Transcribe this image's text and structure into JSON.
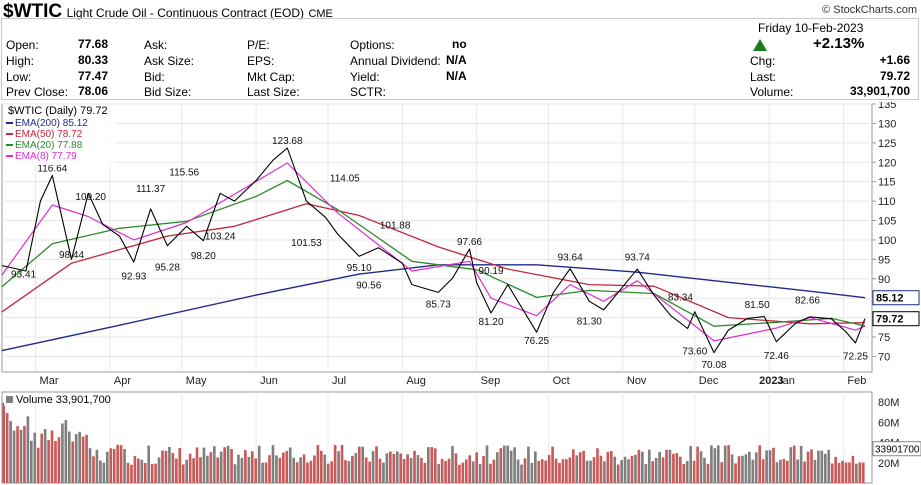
{
  "header": {
    "symbol": "$WTIC",
    "name": "Light Crude Oil - Continuous Contract (EOD)",
    "exchange": "CME",
    "logo": "© StockCharts.com",
    "date": "Friday  10-Feb-2023",
    "pct_change": "+2.13%",
    "icons": {
      "change": "up-triangle-icon"
    },
    "colors": {
      "up": "#1b7a1b"
    }
  },
  "stats": {
    "open_label": "Open:",
    "open": "77.68",
    "high_label": "High:",
    "high": "80.33",
    "low_label": "Low:",
    "low": "77.47",
    "prev_label": "Prev Close:",
    "prev": "78.06",
    "ask_label": "Ask:",
    "ask_size_label": "Ask Size:",
    "bid_label": "Bid:",
    "bid_size_label": "Bid Size:",
    "pe_label": "P/E:",
    "eps_label": "EPS:",
    "mktcap_label": "Mkt Cap:",
    "lastsize_label": "Last Size:",
    "options_label": "Options:",
    "options": "no",
    "dividend_label": "Annual Dividend:",
    "dividend": "N/A",
    "yield_label": "Yield:",
    "yield": "N/A",
    "sctr_label": "SCTR:",
    "chg_label": "Chg:",
    "chg": "+1.66",
    "last_label": "Last:",
    "last": "79.72",
    "volume_label": "Volume:",
    "volume": "33,901,700"
  },
  "chart_data": {
    "type": "line",
    "price_label": "$WTIC (Daily) 79.72",
    "ema_labels": [
      "EMA(200) 85.12",
      "EMA(50) 78.72",
      "EMA(20) 77.88",
      "EMA(8) 77.79"
    ],
    "ema_colors": [
      "#1f2a8c",
      "#c0283a",
      "#2c8a2c",
      "#e02cd0"
    ],
    "price_color": "#000000",
    "ylim": [
      66,
      135
    ],
    "yticks": [
      70,
      75,
      80,
      85,
      90,
      95,
      100,
      105,
      110,
      115,
      120,
      125,
      130,
      135
    ],
    "months": [
      "Mar",
      "Apr",
      "May",
      "Jun",
      "Jul",
      "Aug",
      "Sep",
      "Oct",
      "Nov",
      "Dec",
      "2023",
      "Jan",
      "Feb"
    ],
    "x_range": [
      "2022-02-15",
      "2023-02-10"
    ],
    "month_ticks": [
      "2022-03-01",
      "2022-04-01",
      "2022-05-01",
      "2022-06-01",
      "2022-07-01",
      "2022-08-01",
      "2022-09-01",
      "2022-10-01",
      "2022-11-01",
      "2022-12-01",
      "2023-01-01",
      "2023-02-01"
    ],
    "price": {
      "x": [
        "2022-02-15",
        "2022-02-25",
        "2022-03-03",
        "2022-03-08",
        "2022-03-16",
        "2022-03-23",
        "2022-03-29",
        "2022-04-05",
        "2022-04-11",
        "2022-04-18",
        "2022-04-25",
        "2022-05-03",
        "2022-05-10",
        "2022-05-17",
        "2022-05-23",
        "2022-06-01",
        "2022-06-08",
        "2022-06-14",
        "2022-06-22",
        "2022-06-30",
        "2022-07-05",
        "2022-07-14",
        "2022-07-22",
        "2022-08-01",
        "2022-08-05",
        "2022-08-16",
        "2022-08-22",
        "2022-08-29",
        "2022-09-01",
        "2022-09-07",
        "2022-09-14",
        "2022-09-26",
        "2022-10-03",
        "2022-10-10",
        "2022-10-18",
        "2022-10-24",
        "2022-11-07",
        "2022-11-14",
        "2022-11-21",
        "2022-11-28",
        "2022-12-01",
        "2022-12-09",
        "2022-12-15",
        "2022-12-23",
        "2022-12-30",
        "2023-01-04",
        "2023-01-12",
        "2023-01-18",
        "2023-01-27",
        "2023-02-02",
        "2023-02-06",
        "2023-02-10"
      ],
      "values": [
        93.4,
        92.0,
        110.0,
        116.6,
        95.0,
        112.0,
        104.0,
        101.0,
        94.3,
        108.0,
        98.5,
        103.5,
        99.8,
        112.0,
        110.0,
        115.3,
        120.5,
        123.68,
        110.0,
        105.8,
        101.53,
        95.8,
        98.0,
        94.0,
        88.5,
        86.5,
        90.2,
        97.66,
        89.0,
        81.2,
        88.5,
        76.25,
        86.5,
        92.6,
        84.2,
        82.0,
        92.5,
        85.8,
        80.5,
        77.2,
        81.5,
        71.0,
        76.8,
        79.8,
        80.3,
        73.8,
        78.5,
        80.2,
        79.7,
        76.4,
        73.5,
        79.72
      ]
    },
    "ema200": {
      "x": [
        "2022-02-15",
        "2022-04-01",
        "2022-06-01",
        "2022-07-14",
        "2022-08-16",
        "2022-09-26",
        "2022-11-07",
        "2022-12-15",
        "2023-01-18",
        "2023-02-10"
      ],
      "values": [
        71.5,
        77.5,
        85.8,
        91.2,
        93.6,
        93.6,
        91.7,
        89.1,
        86.8,
        85.12
      ]
    },
    "ema50": {
      "x": [
        "2022-02-15",
        "2022-03-16",
        "2022-04-25",
        "2022-05-23",
        "2022-06-22",
        "2022-07-14",
        "2022-08-16",
        "2022-09-14",
        "2022-10-18",
        "2022-11-14",
        "2022-12-15",
        "2023-01-18",
        "2023-02-10"
      ],
      "values": [
        81.5,
        94.0,
        101.0,
        103.5,
        109.3,
        106.3,
        98.2,
        92.5,
        88.5,
        88.1,
        80.0,
        78.4,
        78.72
      ]
    },
    "ema20": {
      "x": [
        "2022-02-15",
        "2022-03-08",
        "2022-04-05",
        "2022-05-03",
        "2022-06-01",
        "2022-06-14",
        "2022-07-05",
        "2022-08-05",
        "2022-09-01",
        "2022-09-26",
        "2022-10-18",
        "2022-11-14",
        "2022-12-09",
        "2023-01-04",
        "2023-01-27",
        "2023-02-10"
      ],
      "values": [
        88.0,
        99.0,
        103.0,
        104.8,
        111.2,
        115.3,
        107.8,
        94.5,
        92.3,
        85.2,
        87.0,
        86.2,
        77.8,
        78.8,
        79.8,
        77.88
      ]
    },
    "ema8": {
      "x": [
        "2022-02-15",
        "2022-03-08",
        "2022-03-23",
        "2022-04-11",
        "2022-05-03",
        "2022-06-14",
        "2022-07-05",
        "2022-08-05",
        "2022-08-29",
        "2022-09-07",
        "2022-09-26",
        "2022-10-10",
        "2022-10-24",
        "2022-11-07",
        "2022-12-09",
        "2023-01-04",
        "2023-01-18",
        "2023-02-06",
        "2023-02-10"
      ],
      "values": [
        91.0,
        109.0,
        106.0,
        100.0,
        104.5,
        119.8,
        107.0,
        92.0,
        94.5,
        85.0,
        80.5,
        88.5,
        84.2,
        89.5,
        74.0,
        77.3,
        80.0,
        76.8,
        77.79
      ]
    },
    "annotations": [
      {
        "text": "116.64",
        "date": "2022-03-08",
        "value": 116.64,
        "pos": "above"
      },
      {
        "text": "93.41",
        "date": "2022-02-24",
        "value": 93.41,
        "pos": "below"
      },
      {
        "text": "98.44",
        "date": "2022-03-16",
        "value": 98.44,
        "pos": "below"
      },
      {
        "text": "109.20",
        "date": "2022-03-24",
        "value": 109.2,
        "pos": "above"
      },
      {
        "text": "92.93",
        "date": "2022-04-11",
        "value": 92.93,
        "pos": "below"
      },
      {
        "text": "95.28",
        "date": "2022-04-25",
        "value": 95.28,
        "pos": "below"
      },
      {
        "text": "111.37",
        "date": "2022-04-18",
        "value": 111.37,
        "pos": "above"
      },
      {
        "text": "98.20",
        "date": "2022-05-10",
        "value": 98.2,
        "pos": "below"
      },
      {
        "text": "103.24",
        "date": "2022-05-17",
        "value": 103.24,
        "pos": "below"
      },
      {
        "text": "115.56",
        "date": "2022-05-02",
        "value": 115.56,
        "pos": "above"
      },
      {
        "text": "123.68",
        "date": "2022-06-14",
        "value": 123.68,
        "pos": "above"
      },
      {
        "text": "114.05",
        "date": "2022-07-08",
        "value": 114.05,
        "pos": "above"
      },
      {
        "text": "101.53",
        "date": "2022-06-22",
        "value": 101.53,
        "pos": "below"
      },
      {
        "text": "95.10",
        "date": "2022-07-14",
        "value": 95.1,
        "pos": "below"
      },
      {
        "text": "90.56",
        "date": "2022-07-18",
        "value": 90.56,
        "pos": "below"
      },
      {
        "text": "101.88",
        "date": "2022-07-29",
        "value": 101.88,
        "pos": "above"
      },
      {
        "text": "85.73",
        "date": "2022-08-16",
        "value": 85.73,
        "pos": "below"
      },
      {
        "text": "97.66",
        "date": "2022-08-29",
        "value": 97.66,
        "pos": "above"
      },
      {
        "text": "90.19",
        "date": "2022-09-07",
        "value": 90.19,
        "pos": "above"
      },
      {
        "text": "81.20",
        "date": "2022-09-07",
        "value": 81.2,
        "pos": "below"
      },
      {
        "text": "76.25",
        "date": "2022-09-26",
        "value": 76.25,
        "pos": "below"
      },
      {
        "text": "93.64",
        "date": "2022-10-10",
        "value": 93.64,
        "pos": "above"
      },
      {
        "text": "81.30",
        "date": "2022-10-18",
        "value": 81.3,
        "pos": "below"
      },
      {
        "text": "93.74",
        "date": "2022-11-07",
        "value": 93.74,
        "pos": "above"
      },
      {
        "text": "83.34",
        "date": "2022-11-25",
        "value": 83.34,
        "pos": "above"
      },
      {
        "text": "73.60",
        "date": "2022-12-01",
        "value": 73.6,
        "pos": "below"
      },
      {
        "text": "70.08",
        "date": "2022-12-09",
        "value": 70.08,
        "pos": "below"
      },
      {
        "text": "81.50",
        "date": "2022-12-27",
        "value": 81.5,
        "pos": "above"
      },
      {
        "text": "72.46",
        "date": "2023-01-04",
        "value": 72.46,
        "pos": "below"
      },
      {
        "text": "82.66",
        "date": "2023-01-17",
        "value": 82.66,
        "pos": "above"
      },
      {
        "text": "72.25",
        "date": "2023-02-06",
        "value": 72.25,
        "pos": "below"
      }
    ],
    "last_price_tag": "79.72",
    "ema200_tag": "85.12",
    "volume": {
      "label": "Volume 33,901,700",
      "ylim": [
        0,
        90
      ],
      "ytick_labels": [
        {
          "text": "80M",
          "value": 80
        },
        {
          "text": "60M",
          "value": 60
        },
        {
          "text": "40M",
          "value": 40
        },
        {
          "text": "20M",
          "value": 20
        }
      ],
      "last_tag": "33901700",
      "up_color": "#7f7f7f",
      "down_color": "#c85a5a",
      "bar_count": 250
    }
  }
}
